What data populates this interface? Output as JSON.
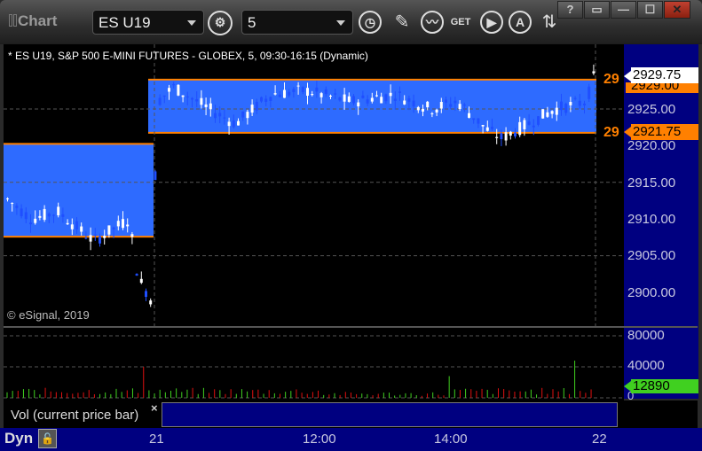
{
  "window": {
    "title": "Chart",
    "buttons": {
      "help": "?",
      "restore_down": "▭",
      "minimize": "—",
      "maximize": "☐",
      "close": "✕"
    }
  },
  "toolbar": {
    "symbol": "ES U19",
    "interval": "5"
  },
  "chart": {
    "header": "* ES U19, S&P 500 E-MINI FUTURES - GLOBEX, 5, 09:30-16:15 (Dynamic)",
    "copyright": "© eSignal, 2019",
    "price_axis": [
      "2925.00",
      "2920.00",
      "2915.00",
      "2910.00",
      "2905.00",
      "2900.00"
    ],
    "last_price": "2929.75",
    "line_label_high": "2929.00",
    "level_tag": "2921.75",
    "line_label_prefix": "29",
    "colors": {
      "box": "#2e6bff",
      "line": "#ff8000",
      "up": "#ffffff",
      "down": "#1f4fff",
      "vol_up": "#40d020",
      "vol_down": "#e01010",
      "axis_bg": "#000080"
    }
  },
  "volume": {
    "axis": [
      "80000",
      "40000",
      "0"
    ],
    "current": "12890",
    "label": "Vol (current price bar)",
    "close": "×"
  },
  "time_axis": [
    "21",
    "12:00",
    "14:00",
    "22"
  ],
  "footer": {
    "mode": "Dyn"
  }
}
